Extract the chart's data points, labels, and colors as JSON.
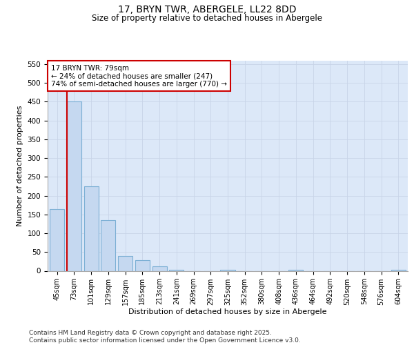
{
  "title1": "17, BRYN TWR, ABERGELE, LL22 8DD",
  "title2": "Size of property relative to detached houses in Abergele",
  "xlabel": "Distribution of detached houses by size in Abergele",
  "ylabel": "Number of detached properties",
  "categories": [
    "45sqm",
    "73sqm",
    "101sqm",
    "129sqm",
    "157sqm",
    "185sqm",
    "213sqm",
    "241sqm",
    "269sqm",
    "297sqm",
    "325sqm",
    "352sqm",
    "380sqm",
    "408sqm",
    "436sqm",
    "464sqm",
    "492sqm",
    "520sqm",
    "548sqm",
    "576sqm",
    "604sqm"
  ],
  "values": [
    165,
    450,
    225,
    135,
    40,
    28,
    12,
    3,
    0,
    0,
    2,
    0,
    0,
    0,
    2,
    0,
    0,
    0,
    0,
    0,
    2
  ],
  "bar_color": "#c5d8f0",
  "bar_edge_color": "#7bafd4",
  "vline_color": "#cc0000",
  "vline_x_index": 1,
  "annotation_text": "17 BRYN TWR: 79sqm\n← 24% of detached houses are smaller (247)\n74% of semi-detached houses are larger (770) →",
  "annotation_box_facecolor": "#ffffff",
  "annotation_box_edgecolor": "#cc0000",
  "ylim_max": 560,
  "ytick_step": 50,
  "grid_color": "#c8d4e8",
  "plot_bg_color": "#dce8f8",
  "fig_bg_color": "#ffffff",
  "footer": "Contains HM Land Registry data © Crown copyright and database right 2025.\nContains public sector information licensed under the Open Government Licence v3.0."
}
